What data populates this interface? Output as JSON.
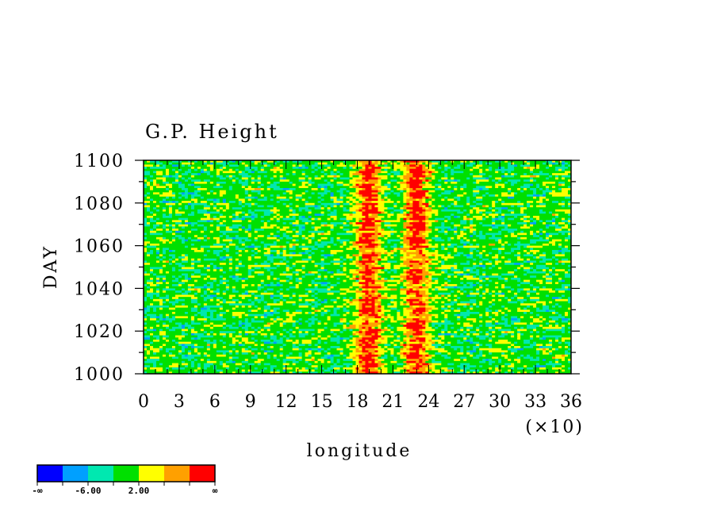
{
  "chart_data": {
    "type": "heatmap",
    "title": "G.P. Height",
    "xlabel": "longitude",
    "ylabel": "DAY",
    "x_multiplier_label": "(×10)",
    "xlim": [
      0,
      36
    ],
    "ylim": [
      1000,
      1100
    ],
    "x_ticks": [
      "0",
      "3",
      "6",
      "9",
      "12",
      "15",
      "18",
      "21",
      "24",
      "27",
      "30",
      "33",
      "36"
    ],
    "y_ticks": [
      "1000",
      "1020",
      "1040",
      "1060",
      "1080",
      "1100"
    ],
    "colorbar": {
      "colors": [
        "#0000ff",
        "#00a0ff",
        "#00e8b0",
        "#00e000",
        "#ffff00",
        "#ffa000",
        "#ff0000"
      ],
      "labels": [
        "-∞",
        "-6.00",
        "2.00",
        "∞"
      ]
    },
    "features": [
      {
        "description": "high-value band",
        "x_center": 19.0,
        "width": 2.5
      },
      {
        "description": "high-value band",
        "x_center": 23.0,
        "width": 2.5
      }
    ]
  }
}
